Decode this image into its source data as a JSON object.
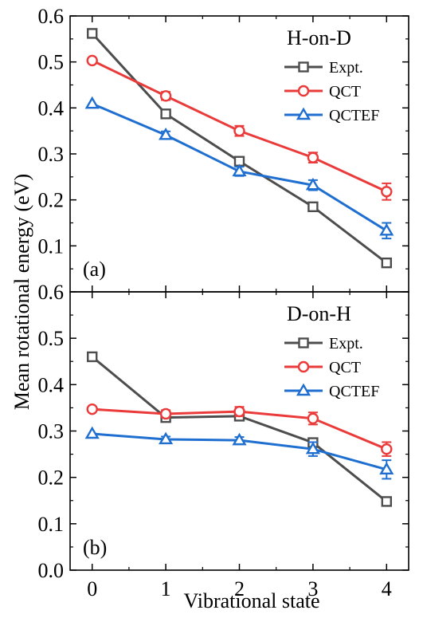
{
  "figure": {
    "ylabel": "Mean rotational energy (eV)",
    "xlabel": "Vibrational state"
  },
  "chart_data": [
    {
      "type": "line",
      "panel_label": "(a)",
      "title": "H-on-D",
      "x": [
        0,
        1,
        2,
        3,
        4
      ],
      "xlim": [
        -0.3,
        4.3
      ],
      "ylim": [
        0.0,
        0.6
      ],
      "x_ticks": [
        "0",
        "1",
        "2",
        "3",
        "4"
      ],
      "y_ticks": [
        "0.1",
        "0.2",
        "0.3",
        "0.4",
        "0.5",
        "0.6"
      ],
      "grid": false,
      "legend_position": "top-right",
      "series": [
        {
          "name": "Expt.",
          "color": "#4d4d4d",
          "marker": "square",
          "values": [
            0.562,
            0.387,
            0.284,
            0.185,
            0.063
          ],
          "errors": [
            0,
            0,
            0,
            0,
            0
          ]
        },
        {
          "name": "QCT",
          "color": "#ea3a3a",
          "marker": "circle",
          "values": [
            0.503,
            0.426,
            0.35,
            0.292,
            0.218
          ],
          "errors": [
            0,
            0.009,
            0.011,
            0.011,
            0.018
          ]
        },
        {
          "name": "QCTEF",
          "color": "#1f6fd1",
          "marker": "triangle",
          "values": [
            0.409,
            0.341,
            0.262,
            0.232,
            0.133
          ],
          "errors": [
            0,
            0.008,
            0.01,
            0.011,
            0.017
          ]
        }
      ]
    },
    {
      "type": "line",
      "panel_label": "(b)",
      "title": "D-on-H",
      "x": [
        0,
        1,
        2,
        3,
        4
      ],
      "xlim": [
        -0.3,
        4.3
      ],
      "ylim": [
        0.0,
        0.6
      ],
      "x_ticks": [
        "0",
        "1",
        "2",
        "3",
        "4"
      ],
      "y_ticks": [
        "0.0",
        "0.1",
        "0.2",
        "0.3",
        "0.4",
        "0.5",
        "0.6"
      ],
      "grid": false,
      "legend_position": "top-right",
      "series": [
        {
          "name": "Expt.",
          "color": "#4d4d4d",
          "marker": "square",
          "values": [
            0.46,
            0.329,
            0.332,
            0.275,
            0.148
          ],
          "errors": [
            0,
            0,
            0,
            0,
            0
          ]
        },
        {
          "name": "QCT",
          "color": "#ea3a3a",
          "marker": "circle",
          "values": [
            0.347,
            0.337,
            0.342,
            0.327,
            0.261
          ],
          "errors": [
            0,
            0.008,
            0.01,
            0.013,
            0.015
          ]
        },
        {
          "name": "QCTEF",
          "color": "#1f6fd1",
          "marker": "triangle",
          "values": [
            0.294,
            0.282,
            0.28,
            0.261,
            0.217
          ],
          "errors": [
            0,
            0.006,
            0.007,
            0.015,
            0.02
          ]
        }
      ]
    }
  ]
}
